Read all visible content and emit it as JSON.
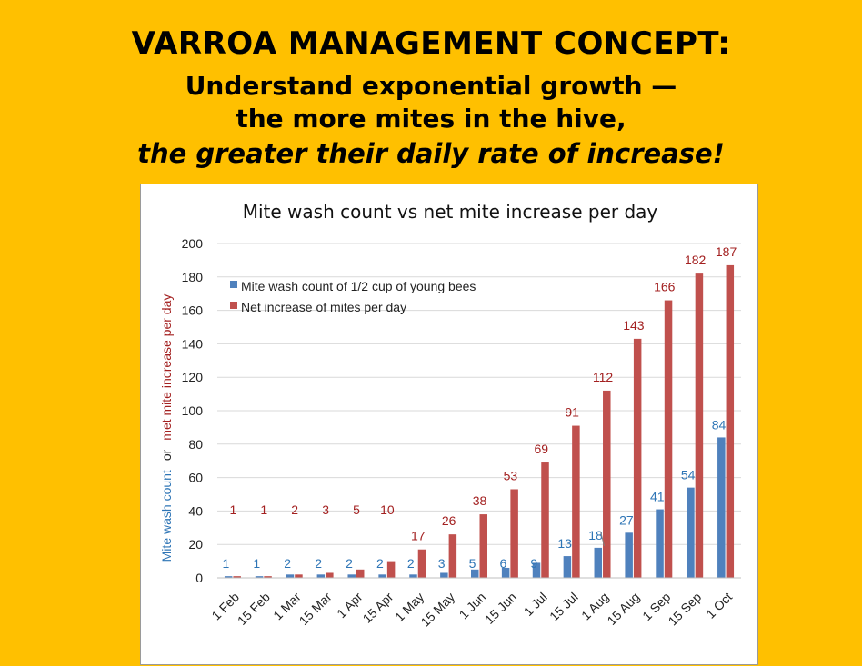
{
  "slide": {
    "title": "VARROA MANAGEMENT CONCEPT:",
    "subtitle_line1": "Understand exponential growth —",
    "subtitle_line2": "the more mites in the hive,",
    "subtitle_line3": "the greater their daily rate of increase!"
  },
  "colors": {
    "background": "#FFC000",
    "series_wash": "#4F81BD",
    "series_increase": "#C0504D",
    "label_wash": "#2E75B6",
    "label_increase": "#A32020"
  },
  "chart_data": {
    "type": "bar",
    "title": "Mite wash count vs net mite increase per day",
    "ylabel_parts": [
      "Mite wash count",
      "or",
      "met mite increase per day"
    ],
    "ylim": [
      0,
      200
    ],
    "yticks": [
      0,
      20,
      40,
      60,
      80,
      100,
      120,
      140,
      160,
      180,
      200
    ],
    "grid": true,
    "legend_position": "top-left",
    "categories": [
      "1 Feb",
      "15 Feb",
      "1 Mar",
      "15 Mar",
      "1 Apr",
      "15 Apr",
      "1 May",
      "15 May",
      "1 Jun",
      "15 Jun",
      "1 Jul",
      "15 Jul",
      "1 Aug",
      "15 Aug",
      "1 Sep",
      "15 Sep",
      "1 Oct"
    ],
    "series": [
      {
        "name": "Mite wash count of 1/2 cup of young bees",
        "values": [
          1,
          1,
          2,
          2,
          2,
          2,
          2,
          3,
          5,
          6,
          9,
          13,
          18,
          27,
          41,
          54,
          84
        ],
        "labels": [
          "1",
          "1",
          "2",
          "2",
          "2",
          "2",
          "2",
          "3",
          "5",
          "6",
          "9",
          "13",
          "18",
          "27",
          "41",
          "54",
          "84"
        ]
      },
      {
        "name": "Net increase of mites per day",
        "values": [
          1,
          1,
          2,
          3,
          5,
          10,
          17,
          26,
          38,
          53,
          69,
          91,
          112,
          143,
          166,
          182,
          187
        ],
        "labels": [
          "1",
          "1",
          "2",
          "3",
          "5",
          "10",
          "17",
          "26",
          "38",
          "53",
          "69",
          "91",
          "112",
          "143",
          "166",
          "182",
          "187"
        ]
      }
    ]
  }
}
